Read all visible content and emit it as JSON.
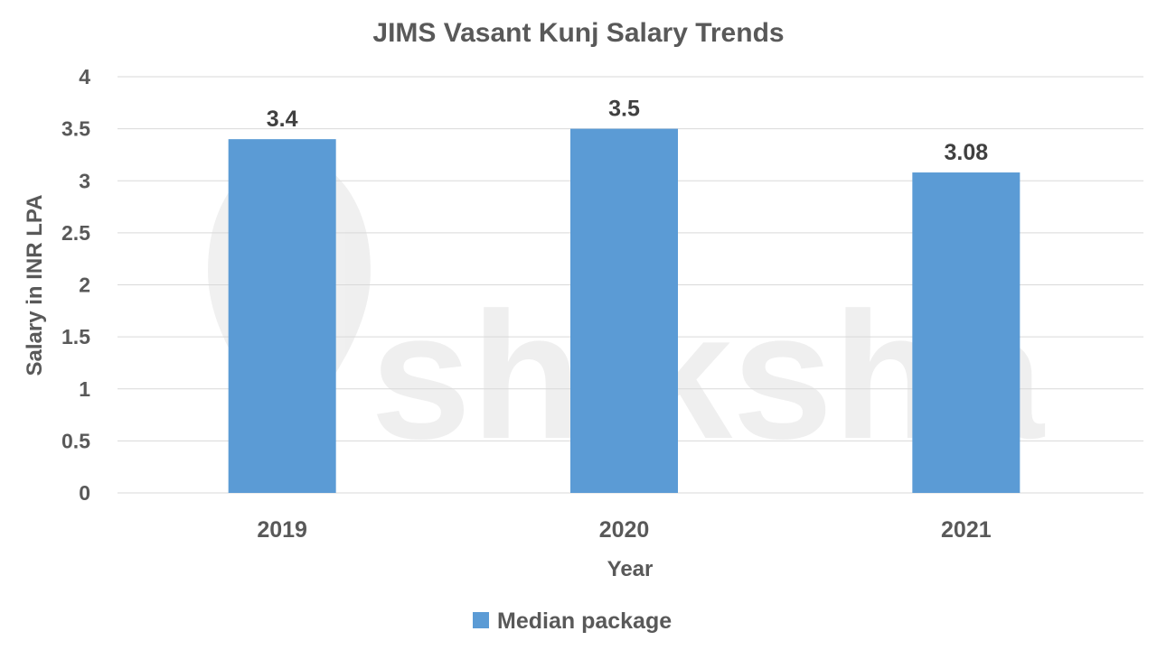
{
  "watermark": {
    "text": "shiksha"
  },
  "chart_data": {
    "type": "bar",
    "title": "JIMS Vasant Kunj Salary Trends",
    "xlabel": "Year",
    "ylabel": "Salary in INR LPA",
    "categories": [
      "2019",
      "2020",
      "2021"
    ],
    "series": [
      {
        "name": "Median package",
        "values": [
          3.4,
          3.5,
          3.08
        ],
        "labels": [
          "3.4",
          "3.5",
          "3.08"
        ],
        "color": "#5B9BD5"
      }
    ],
    "ylim": [
      0,
      4
    ],
    "yticks": [
      0,
      0.5,
      1,
      1.5,
      2,
      2.5,
      3,
      3.5,
      4
    ],
    "ytick_labels": [
      "0",
      "0.5",
      "1",
      "1.5",
      "2",
      "2.5",
      "3",
      "3.5",
      "4"
    ],
    "grid": true,
    "legend": "bottom",
    "colors": {
      "grid": "#d9d9d9",
      "text": "#595959",
      "data_label": "#404040"
    }
  }
}
